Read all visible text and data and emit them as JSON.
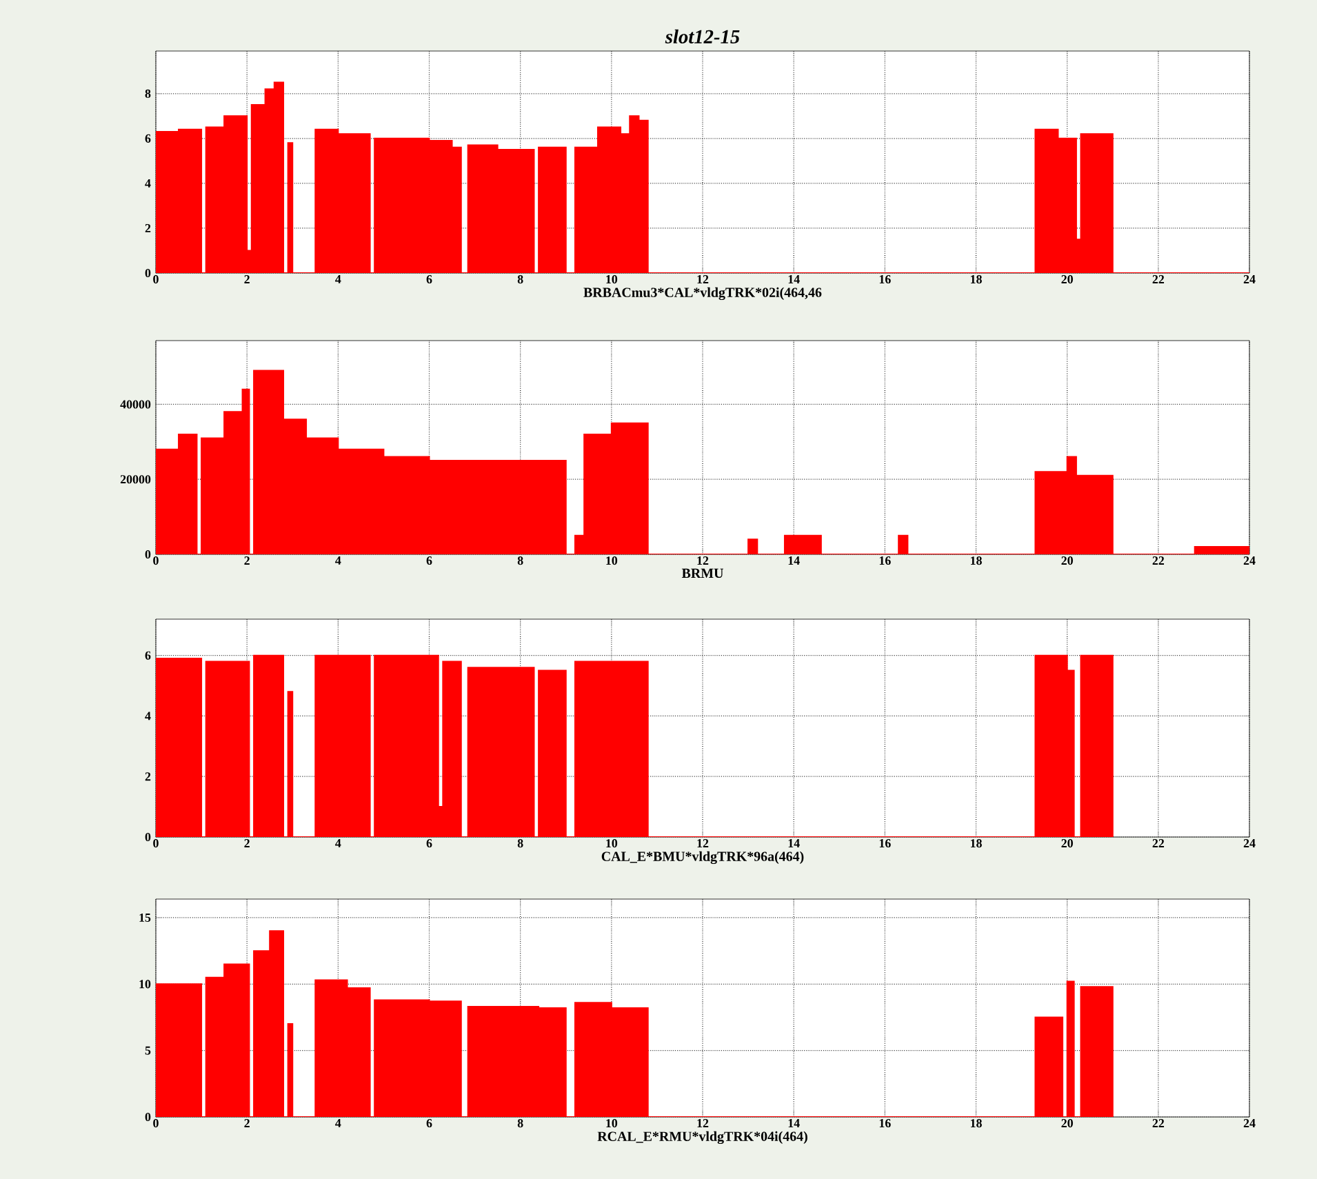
{
  "chart_data": [
    {
      "type": "histogram",
      "title": "slot12-15",
      "xlabel": "BRBACmu3*CAL*vldgTRK*02i(464,46",
      "color": "#ff0000",
      "grid": true,
      "xlim": [
        0,
        24
      ],
      "xticks": [
        0,
        2,
        4,
        6,
        8,
        10,
        12,
        14,
        16,
        18,
        20,
        22,
        24
      ],
      "ylim": [
        0,
        9.9
      ],
      "yticks": [
        0,
        2,
        4,
        6,
        8
      ],
      "bins": [
        0,
        0.5,
        1.0,
        1.1,
        1.5,
        2.0,
        2.1,
        2.4,
        2.6,
        2.8,
        2.9,
        3.0,
        3.5,
        4.0,
        4.7,
        4.8,
        6.0,
        6.5,
        6.7,
        6.85,
        7.5,
        8.3,
        8.4,
        9.0,
        9.2,
        9.7,
        10.2,
        10.4,
        10.6,
        10.8,
        19.3,
        19.8,
        20.2,
        20.3,
        21.0,
        24
      ],
      "values": [
        6.3,
        6.4,
        0,
        6.5,
        7.0,
        1,
        7.5,
        8.2,
        8.5,
        0,
        5.8,
        0,
        6.4,
        6.2,
        0,
        6.0,
        5.9,
        5.6,
        0,
        5.7,
        5.5,
        0,
        5.6,
        0,
        5.6,
        6.5,
        6.2,
        7.0,
        6.8,
        0,
        6.4,
        6.0,
        1.5,
        6.2,
        0
      ]
    },
    {
      "type": "histogram",
      "xlabel": "BRMU",
      "color": "#ff0000",
      "grid": true,
      "xlim": [
        0,
        24
      ],
      "xticks": [
        0,
        2,
        4,
        6,
        8,
        10,
        12,
        14,
        16,
        18,
        20,
        22,
        24
      ],
      "ylim": [
        0,
        57000
      ],
      "yticks": [
        0,
        20000,
        40000
      ],
      "bins": [
        0,
        0.5,
        0.9,
        1.0,
        1.5,
        1.9,
        2.05,
        2.15,
        2.8,
        3.3,
        4.0,
        5.0,
        6.0,
        8.0,
        9.0,
        9.2,
        9.4,
        10.0,
        10.8,
        13.0,
        13.2,
        13.8,
        14.6,
        16.3,
        16.5,
        19.3,
        20.0,
        20.2,
        21.0,
        22.8,
        24
      ],
      "values": [
        28000,
        32000,
        0,
        31000,
        38000,
        44000,
        0,
        49000,
        36000,
        31000,
        28000,
        26000,
        25000,
        25000,
        0,
        5000,
        32000,
        35000,
        0,
        4000,
        0,
        5000,
        0,
        5000,
        0,
        22000,
        26000,
        21000,
        0,
        2000
      ]
    },
    {
      "type": "histogram",
      "xlabel": "CAL_E*BMU*vldgTRK*96a(464)",
      "color": "#ff0000",
      "grid": true,
      "xlim": [
        0,
        24
      ],
      "xticks": [
        0,
        2,
        4,
        6,
        8,
        10,
        12,
        14,
        16,
        18,
        20,
        22,
        24
      ],
      "ylim": [
        0,
        7.2
      ],
      "yticks": [
        0,
        2,
        4,
        6
      ],
      "bins": [
        0,
        1.0,
        1.1,
        2.05,
        2.15,
        2.8,
        2.9,
        3.0,
        3.5,
        4.7,
        4.8,
        6.2,
        6.3,
        6.7,
        6.85,
        8.3,
        8.4,
        9.0,
        9.2,
        10.8,
        19.3,
        20.0,
        20.15,
        20.3,
        21.0
      ],
      "values": [
        5.9,
        0,
        5.8,
        0,
        6.0,
        0,
        4.8,
        0,
        6.0,
        0,
        6.0,
        1,
        5.8,
        0,
        5.6,
        0,
        5.5,
        0,
        5.8,
        0,
        6.0,
        5.5,
        0,
        6.0
      ]
    },
    {
      "type": "histogram",
      "xlabel": "RCAL_E*RMU*vldgTRK*04i(464)",
      "color": "#ff0000",
      "grid": true,
      "xlim": [
        0,
        24
      ],
      "xticks": [
        0,
        2,
        4,
        6,
        8,
        10,
        12,
        14,
        16,
        18,
        20,
        22,
        24
      ],
      "ylim": [
        0,
        16.4
      ],
      "yticks": [
        0,
        5,
        10,
        15
      ],
      "bins": [
        0,
        1.0,
        1.1,
        1.5,
        2.05,
        2.15,
        2.5,
        2.8,
        2.9,
        3.0,
        3.5,
        4.2,
        4.7,
        4.8,
        6.0,
        6.7,
        6.85,
        8.4,
        9.0,
        9.2,
        10.0,
        10.8,
        19.3,
        19.9,
        20.0,
        20.15,
        20.3,
        21.0
      ],
      "values": [
        10.0,
        0,
        10.5,
        11.5,
        0,
        12.5,
        14.0,
        0,
        7,
        0,
        10.3,
        9.7,
        0,
        8.8,
        8.7,
        0,
        8.3,
        8.2,
        0,
        8.6,
        8.2,
        0,
        7.5,
        0,
        10.2,
        0,
        9.8
      ]
    }
  ]
}
